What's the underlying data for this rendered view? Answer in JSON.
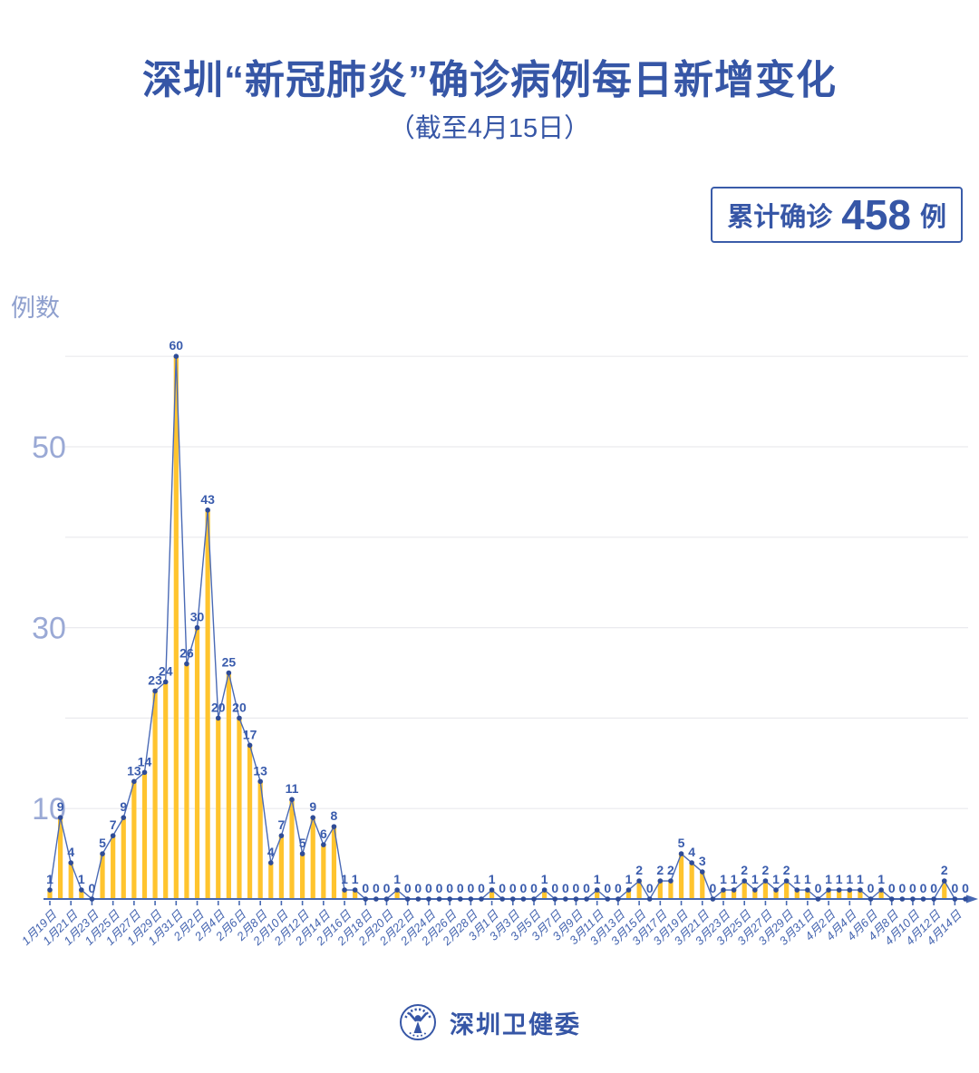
{
  "title": "深圳“新冠肺炎”确诊病例每日新增变化",
  "subtitle": "（截至4月15日）",
  "summary_badge": {
    "prefix": "累计确诊",
    "value": "458",
    "suffix": "例"
  },
  "footer": {
    "org_name": "深圳卫健委",
    "logo_icon": "shenzhen-health-commission-emblem"
  },
  "colors": {
    "brand_blue": "#3656A6",
    "bar": "#FFC42E",
    "line": "#4A6AB5",
    "dot": "#2F4C97",
    "value_label": "#3A5CAD",
    "x_tick_label": "#4565B0",
    "y_tick_label": "#9AA9D5",
    "gridline": "#EAEAEE",
    "axis": "#4668B2",
    "badge_border": "#3A5CA9"
  },
  "chart_data": {
    "type": "bar",
    "overlay_line": true,
    "title": "深圳“新冠肺炎”确诊病例每日新增变化（截至4月15日）",
    "xlabel": "",
    "ylabel": "例数",
    "ylim": [
      0,
      62
    ],
    "grid": true,
    "legend": false,
    "total": 458,
    "y_tick_values": [
      10,
      30,
      50
    ],
    "gridline_values": [
      10,
      20,
      30,
      40,
      50,
      60
    ],
    "x_tick_every": 2,
    "x_tick_labels": [
      "1月19日",
      "1月21日",
      "1月23日",
      "1月25日",
      "1月27日",
      "1月29日",
      "1月31日",
      "2月2日",
      "2月4日",
      "2月6日",
      "2月8日",
      "2月10日",
      "2月12日",
      "2月14日",
      "2月16日",
      "2月18日",
      "2月20日",
      "2月22日",
      "2月24日",
      "2月26日",
      "2月28日",
      "3月1日",
      "3月3日",
      "3月5日",
      "3月7日",
      "3月9日",
      "3月11日",
      "3月13日",
      "3月15日",
      "3月17日",
      "3月19日",
      "3月21日",
      "3月23日",
      "3月25日",
      "3月27日",
      "3月29日",
      "3月31日",
      "4月2日",
      "4月4日",
      "4月6日",
      "4月8日",
      "4月10日",
      "4月12日",
      "4月14日"
    ],
    "values": [
      1,
      9,
      4,
      1,
      0,
      5,
      7,
      9,
      13,
      14,
      23,
      24,
      60,
      26,
      30,
      43,
      20,
      25,
      20,
      17,
      13,
      4,
      7,
      11,
      5,
      9,
      6,
      8,
      1,
      1,
      0,
      0,
      0,
      1,
      0,
      0,
      0,
      0,
      0,
      0,
      0,
      0,
      1,
      0,
      0,
      0,
      0,
      1,
      0,
      0,
      0,
      0,
      1,
      0,
      0,
      1,
      2,
      0,
      2,
      2,
      5,
      4,
      3,
      0,
      1,
      1,
      2,
      1,
      2,
      1,
      2,
      1,
      1,
      0,
      1,
      1,
      1,
      1,
      0,
      1,
      0,
      0,
      0,
      0,
      0,
      2,
      0,
      0
    ]
  }
}
